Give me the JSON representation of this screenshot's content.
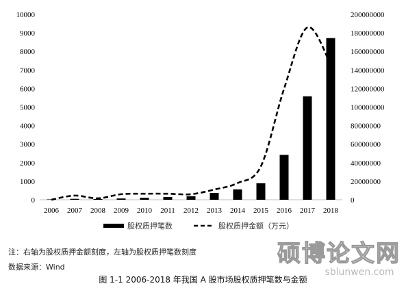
{
  "chart_data": {
    "type": "bar+line",
    "categories": [
      "2006",
      "2007",
      "2008",
      "2009",
      "2010",
      "2011",
      "2012",
      "2013",
      "2014",
      "2015",
      "2016",
      "2017",
      "2018"
    ],
    "series": [
      {
        "name": "股权质押笔数",
        "axis": "left",
        "kind": "bar",
        "values": [
          20,
          50,
          40,
          70,
          110,
          150,
          190,
          370,
          560,
          890,
          2420,
          5580,
          8720
        ]
      },
      {
        "name": "股权质押金额（万元）",
        "axis": "right",
        "kind": "dashed-line",
        "values": [
          0,
          4500000,
          1500000,
          6000000,
          6500000,
          6500000,
          6000000,
          11000000,
          18000000,
          36000000,
          120000000,
          186000000,
          146000000
        ]
      }
    ],
    "y_left": {
      "min": 0,
      "max": 10000,
      "ticks": [
        0,
        1000,
        2000,
        3000,
        4000,
        5000,
        6000,
        7000,
        8000,
        9000,
        10000
      ]
    },
    "y_right": {
      "min": 0,
      "max": 200000000,
      "ticks": [
        0,
        20000000,
        40000000,
        60000000,
        80000000,
        100000000,
        120000000,
        140000000,
        160000000,
        180000000,
        200000000
      ]
    },
    "grid": false,
    "legend_position": "bottom"
  },
  "notes": {
    "line1": "注：右轴为股权质押金额刻度，左轴为股权质押笔数刻度",
    "line2": "数据来源：Wind"
  },
  "caption": "图 1-1 2006-2018 年我国 A 股市场股权质押笔数与金额",
  "watermark": {
    "text": "硕博论文网",
    "url": "sblunwen.com"
  }
}
